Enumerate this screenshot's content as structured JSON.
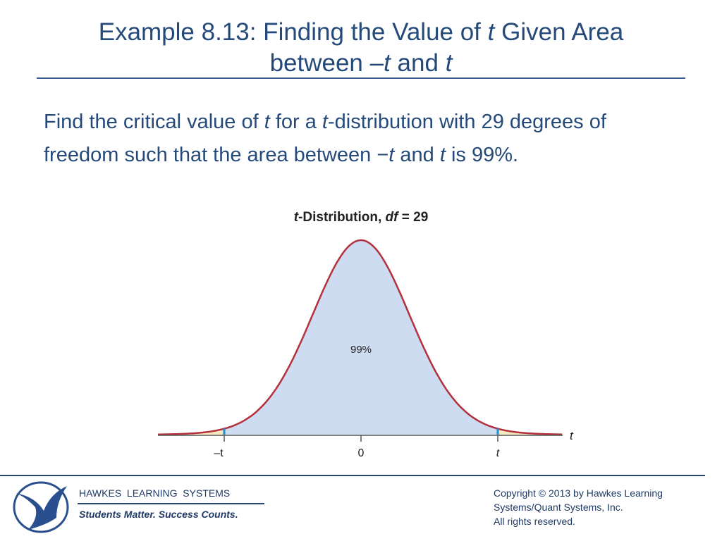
{
  "header": {
    "title": [
      "Example 8.13: Finding the Value of ",
      "t",
      " Given Area",
      "between –",
      "t",
      " and ",
      "t"
    ]
  },
  "body": {
    "text": [
      "Find the critical value of ",
      "t",
      " for a ",
      "t",
      "-distribution with 29 degrees of freedom such that the area between −",
      "t",
      " and ",
      "t",
      " is 99%."
    ]
  },
  "figure": {
    "title": [
      "t",
      "-Distribution, ",
      "df",
      " = 29"
    ],
    "area_label": "99%",
    "axis_label": "t",
    "ticks": [
      "–t",
      "0",
      "t"
    ]
  },
  "footer": {
    "company": "HAWKES  LEARNING  SYSTEMS",
    "slogan": "Students Matter. Success Counts.",
    "copyright": [
      "Copyright © 2013 by Hawkes Learning",
      "Systems/Quant Systems, Inc.",
      "All rights reserved."
    ]
  }
}
